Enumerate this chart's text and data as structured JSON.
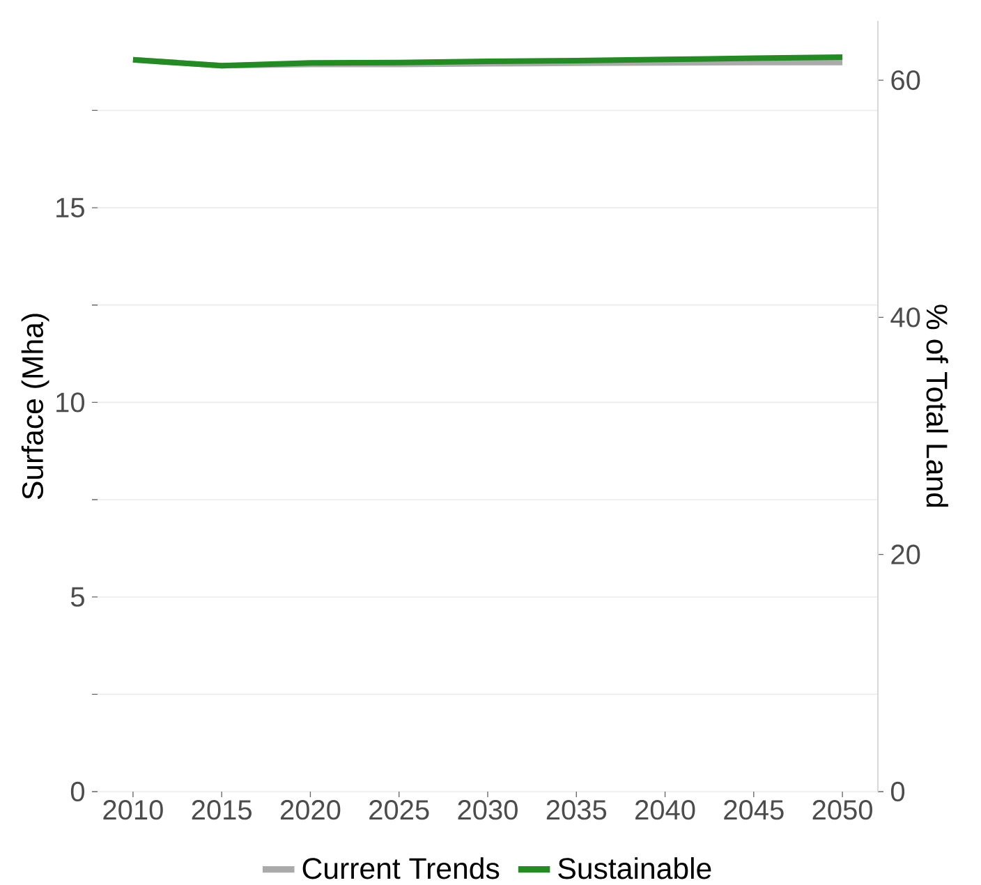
{
  "chart_data": {
    "type": "line",
    "xlabel": null,
    "ylabel": "Surface (Mha)",
    "y2label": "% of Total Land",
    "x": [
      2010,
      2015,
      2020,
      2025,
      2030,
      2035,
      2040,
      2045,
      2050
    ],
    "series": [
      {
        "name": "Current Trends",
        "color": "#aaaaaa",
        "values": [
          18.8,
          18.65,
          18.68,
          18.68,
          18.7,
          18.71,
          18.72,
          18.73,
          18.73
        ]
      },
      {
        "name": "Sustainable",
        "color": "#228b22",
        "values": [
          18.8,
          18.65,
          18.72,
          18.73,
          18.76,
          18.78,
          18.81,
          18.84,
          18.87
        ]
      }
    ],
    "xlim": [
      2008,
      2052
    ],
    "xticks": [
      2010,
      2015,
      2020,
      2025,
      2030,
      2035,
      2040,
      2045,
      2050
    ],
    "ylim": [
      0,
      19.8
    ],
    "yticks": [
      0,
      {
        "value": 2.5,
        "label": null
      },
      5,
      {
        "value": 7.5,
        "label": null
      },
      10,
      {
        "value": 12.5,
        "label": null
      },
      15,
      {
        "value": 17.5,
        "label": null
      }
    ],
    "y2lim": [
      0,
      65
    ],
    "y2ticks": [
      0,
      20,
      40,
      60
    ],
    "grid": "y",
    "legend": "bottom",
    "line_style": "solid",
    "marker": "none"
  }
}
